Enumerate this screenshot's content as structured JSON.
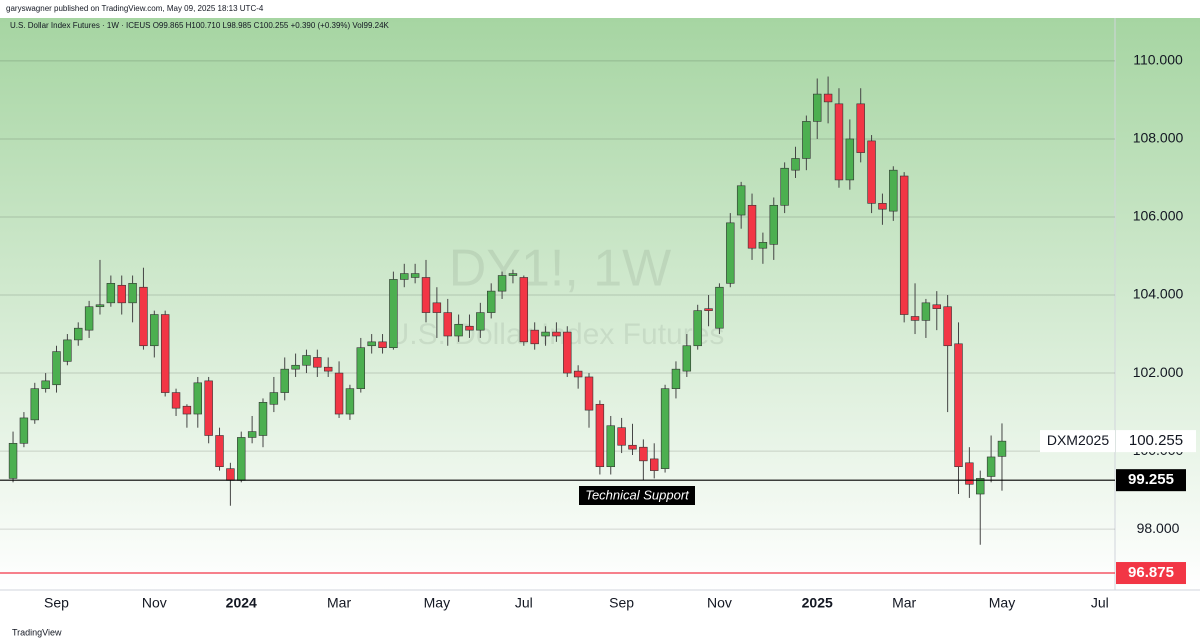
{
  "header": {
    "publisher": "garyswagner published on TradingView.com, May 09, 2025 18:13 UTC-4",
    "footer": "TradingView"
  },
  "chart_data": {
    "type": "candlestick",
    "title": "U.S. Dollar Index Futures · 1W · ICEUS  O99.865  H100.710  L98.985  C100.255  +0.390 (+0.39%)  Vol99.24K",
    "watermark": "DY1!, 1W",
    "watermark_subtitle": "U.S. Dollar Index Futures",
    "up_color": "#4caf50",
    "down_color": "#f23645",
    "open": [
      99.3,
      100.2,
      100.8,
      101.6,
      101.7,
      102.3,
      102.85,
      103.1,
      103.7,
      103.8,
      104.25,
      103.8,
      104.2,
      102.7,
      103.5,
      101.5,
      101.15,
      100.95,
      101.8,
      100.4,
      99.55,
      99.25,
      100.35,
      100.4,
      101.2,
      101.5,
      102.1,
      102.2,
      102.4,
      102.15,
      102.0,
      100.95,
      101.6,
      102.7,
      102.8,
      102.65,
      104.4,
      104.45,
      104.45,
      103.8,
      103.55,
      102.95,
      103.2,
      103.1,
      103.55,
      104.1,
      104.5,
      104.45,
      103.1,
      102.95,
      103.05,
      103.05,
      102.05,
      101.9,
      101.2,
      99.6,
      100.6,
      100.15,
      100.1,
      99.8,
      99.55,
      101.6,
      102.05,
      102.7,
      103.65,
      103.15,
      104.3,
      106.05,
      106.3,
      105.2,
      105.3,
      106.3,
      107.2,
      107.5,
      108.45,
      109.15,
      108.9,
      106.95,
      108.9,
      107.95,
      106.35,
      106.15,
      107.05,
      103.45,
      103.35,
      103.75,
      103.7,
      102.75,
      99.7,
      98.9,
      99.35,
      99.865
    ],
    "high": [
      100.5,
      101.0,
      101.75,
      102.0,
      102.7,
      103.0,
      103.3,
      103.85,
      104.9,
      104.5,
      104.5,
      104.5,
      104.7,
      103.6,
      103.6,
      101.6,
      101.2,
      101.9,
      101.9,
      100.6,
      99.7,
      100.5,
      100.9,
      101.35,
      101.9,
      102.4,
      102.5,
      102.6,
      102.6,
      102.4,
      102.3,
      101.7,
      102.9,
      103.0,
      103.0,
      104.6,
      104.8,
      104.8,
      104.9,
      104.2,
      103.9,
      103.5,
      103.5,
      103.8,
      104.3,
      104.6,
      104.65,
      104.5,
      103.3,
      103.2,
      103.3,
      103.2,
      102.2,
      102.0,
      101.3,
      100.9,
      100.85,
      100.7,
      100.3,
      100.2,
      101.7,
      102.3,
      103.0,
      103.75,
      104.0,
      104.3,
      106.1,
      106.9,
      106.6,
      105.6,
      106.5,
      107.4,
      107.8,
      108.6,
      109.55,
      109.6,
      109.3,
      108.5,
      109.3,
      108.1,
      106.6,
      107.3,
      107.15,
      104.3,
      103.9,
      104.1,
      104.0,
      103.3,
      100.1,
      99.5,
      100.4,
      100.71
    ],
    "low": [
      99.2,
      100.1,
      100.7,
      101.5,
      101.5,
      102.2,
      102.7,
      102.9,
      103.5,
      103.7,
      103.5,
      103.3,
      102.6,
      102.4,
      101.4,
      100.9,
      100.6,
      100.6,
      100.2,
      99.5,
      98.6,
      99.2,
      100.2,
      100.1,
      101.0,
      101.3,
      101.9,
      102.0,
      101.9,
      101.9,
      100.85,
      100.8,
      101.5,
      102.5,
      102.5,
      102.6,
      104.2,
      104.3,
      103.3,
      102.9,
      102.7,
      102.8,
      102.9,
      102.9,
      103.4,
      103.9,
      104.3,
      102.7,
      102.6,
      102.7,
      102.8,
      101.9,
      101.6,
      100.6,
      99.4,
      99.4,
      99.95,
      99.9,
      99.25,
      99.3,
      99.45,
      101.35,
      101.9,
      102.6,
      103.2,
      103.0,
      104.2,
      105.7,
      104.9,
      104.8,
      104.9,
      106.1,
      107.0,
      107.2,
      108.0,
      108.4,
      106.75,
      106.7,
      107.4,
      106.1,
      105.8,
      105.9,
      103.3,
      103.0,
      102.9,
      103.1,
      101.0,
      98.9,
      98.8,
      97.6,
      99.2,
      98.985
    ],
    "close": [
      100.2,
      100.85,
      101.6,
      101.8,
      102.55,
      102.85,
      103.15,
      103.7,
      103.75,
      104.3,
      103.8,
      104.3,
      102.7,
      103.5,
      101.5,
      101.1,
      100.95,
      101.75,
      100.4,
      99.6,
      99.25,
      100.35,
      100.5,
      101.25,
      101.5,
      102.1,
      102.2,
      102.45,
      102.15,
      102.05,
      100.95,
      101.6,
      102.65,
      102.8,
      102.65,
      104.4,
      104.55,
      104.55,
      103.55,
      103.55,
      102.95,
      103.25,
      103.1,
      103.55,
      104.1,
      104.5,
      104.55,
      102.8,
      102.75,
      103.05,
      102.95,
      102.0,
      101.9,
      101.05,
      99.6,
      100.65,
      100.15,
      100.05,
      99.75,
      99.5,
      101.6,
      102.1,
      102.7,
      103.6,
      103.6,
      104.2,
      105.85,
      106.8,
      105.2,
      105.35,
      106.3,
      107.25,
      107.5,
      108.45,
      109.15,
      108.95,
      106.95,
      108.0,
      107.65,
      106.35,
      106.2,
      107.2,
      103.5,
      103.35,
      103.8,
      103.65,
      102.7,
      99.6,
      99.15,
      99.3,
      99.85,
      100.255
    ],
    "last_symbol": "DXM2025",
    "price_lines": [
      {
        "value": 99.255,
        "color": "#000000"
      },
      {
        "value": 96.875,
        "color": "#f23645"
      }
    ],
    "annotation": "Technical Support",
    "xlim": [
      -1.2,
      101.4
    ],
    "xticks": [
      {
        "value": 4,
        "label": "Sep"
      },
      {
        "value": 13,
        "label": "Nov"
      },
      {
        "value": 21,
        "label": "2024"
      },
      {
        "value": 30,
        "label": "Mar"
      },
      {
        "value": 39,
        "label": "May"
      },
      {
        "value": 47,
        "label": "Jul"
      },
      {
        "value": 56,
        "label": "Sep"
      },
      {
        "value": 65,
        "label": "Nov"
      },
      {
        "value": 74,
        "label": "2025"
      },
      {
        "value": 82,
        "label": "Mar"
      },
      {
        "value": 91,
        "label": "May"
      },
      {
        "value": 100,
        "label": "Jul"
      }
    ],
    "ylim": [
      96.44,
      111.1
    ],
    "yticks": [
      {
        "value": 98,
        "label": "98.000"
      },
      {
        "value": 100,
        "label": "100.000"
      },
      {
        "value": 102,
        "label": "102.000"
      },
      {
        "value": 104,
        "label": "104.000"
      },
      {
        "value": 106,
        "label": "106.000"
      },
      {
        "value": 108,
        "label": "108.000"
      },
      {
        "value": 110,
        "label": "110.000"
      }
    ],
    "grid": true
  }
}
